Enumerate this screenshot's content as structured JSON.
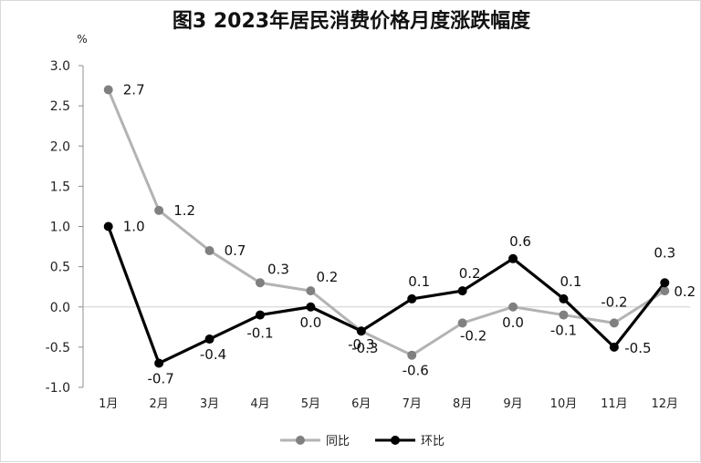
{
  "chart_data": {
    "type": "line",
    "title": "图3  2023年居民消费价格月度涨跌幅度",
    "unit": "%",
    "categories": [
      "1月",
      "2月",
      "3月",
      "4月",
      "5月",
      "6月",
      "7月",
      "8月",
      "9月",
      "10月",
      "11月",
      "12月"
    ],
    "ylim": [
      -1.0,
      3.0
    ],
    "yticks": [
      "3.0",
      "2.5",
      "2.0",
      "1.5",
      "1.0",
      "0.5",
      "0.0",
      "-0.5",
      "-1.0"
    ],
    "grid": false,
    "legend_position": "bottom",
    "series": [
      {
        "name": "同比",
        "color": "#b3b3b3",
        "marker_color": "#808080",
        "values": [
          2.7,
          1.2,
          0.7,
          0.3,
          0.2,
          -0.3,
          -0.6,
          -0.2,
          0.0,
          -0.1,
          -0.2,
          0.2
        ],
        "labels": [
          "2.7",
          "1.2",
          "0.7",
          "0.3",
          "0.2",
          "-0.3",
          "-0.6",
          "-0.2",
          "0.0",
          "-0.1",
          "-0.2",
          "0.2"
        ]
      },
      {
        "name": "环比",
        "color": "#000000",
        "marker_color": "#000000",
        "values": [
          1.0,
          -0.7,
          -0.4,
          -0.1,
          0.0,
          -0.3,
          0.1,
          0.2,
          0.6,
          0.1,
          -0.5,
          0.3
        ],
        "labels": [
          "1.0",
          "-0.7",
          "-0.4",
          "-0.1",
          "0.0",
          "-0.3",
          "0.1",
          "0.2",
          "0.6",
          "0.1",
          "-0.5",
          "0.3"
        ]
      }
    ]
  }
}
